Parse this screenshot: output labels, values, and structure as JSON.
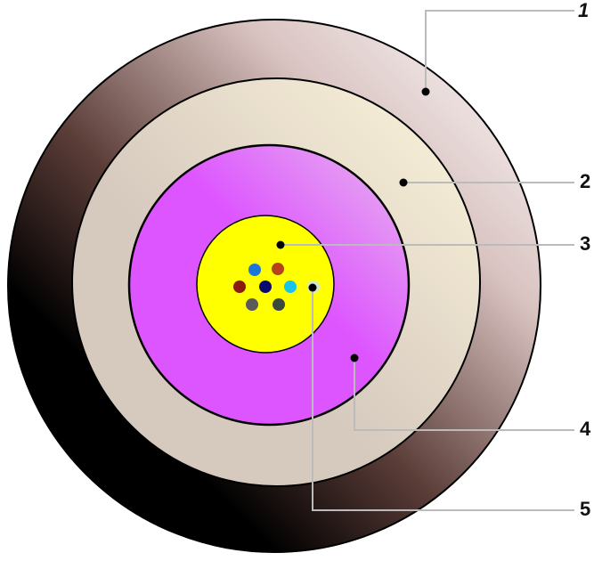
{
  "diagram": {
    "callouts": [
      {
        "id": "1",
        "label": "1"
      },
      {
        "id": "2",
        "label": "2"
      },
      {
        "id": "3",
        "label": "3"
      },
      {
        "id": "4",
        "label": "4"
      },
      {
        "id": "5",
        "label": "5"
      }
    ],
    "colors": {
      "outer_jacket_dark": "#000000",
      "outer_jacket_light": "#ffffff",
      "outer_jacket_mid": "#b49490",
      "buffer_light": "#fdf6dc",
      "buffer_mid": "#d6c9be",
      "cladding_light": "#e8b8ee",
      "cladding_mid": "#dd55ff",
      "core": "#ffff00",
      "leader_line": "#bbbbbb",
      "fibers": [
        "#1a77d9",
        "#b5441a",
        "#8b1a10",
        "#0a0a6e",
        "#1ac4e8",
        "#d6e6cf",
        "#5a5a5a",
        "#3c4a3c"
      ]
    }
  }
}
